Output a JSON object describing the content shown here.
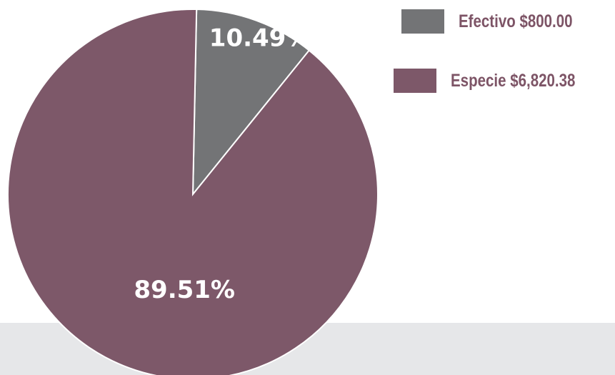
{
  "chart_data": {
    "type": "pie",
    "slices": [
      {
        "legend": "Efectivo $800.00",
        "value": 800.0,
        "percent_label": "10.49%",
        "color": "#737476"
      },
      {
        "legend": "Especie $6,820.38",
        "value": 6820.38,
        "percent_label": "89.51%",
        "color": "#7d5869"
      }
    ],
    "legend_position": "top-right",
    "legend_text_color": "#7d5466",
    "label_color": "#ffffff",
    "footer_color": "#e6e7e9"
  }
}
